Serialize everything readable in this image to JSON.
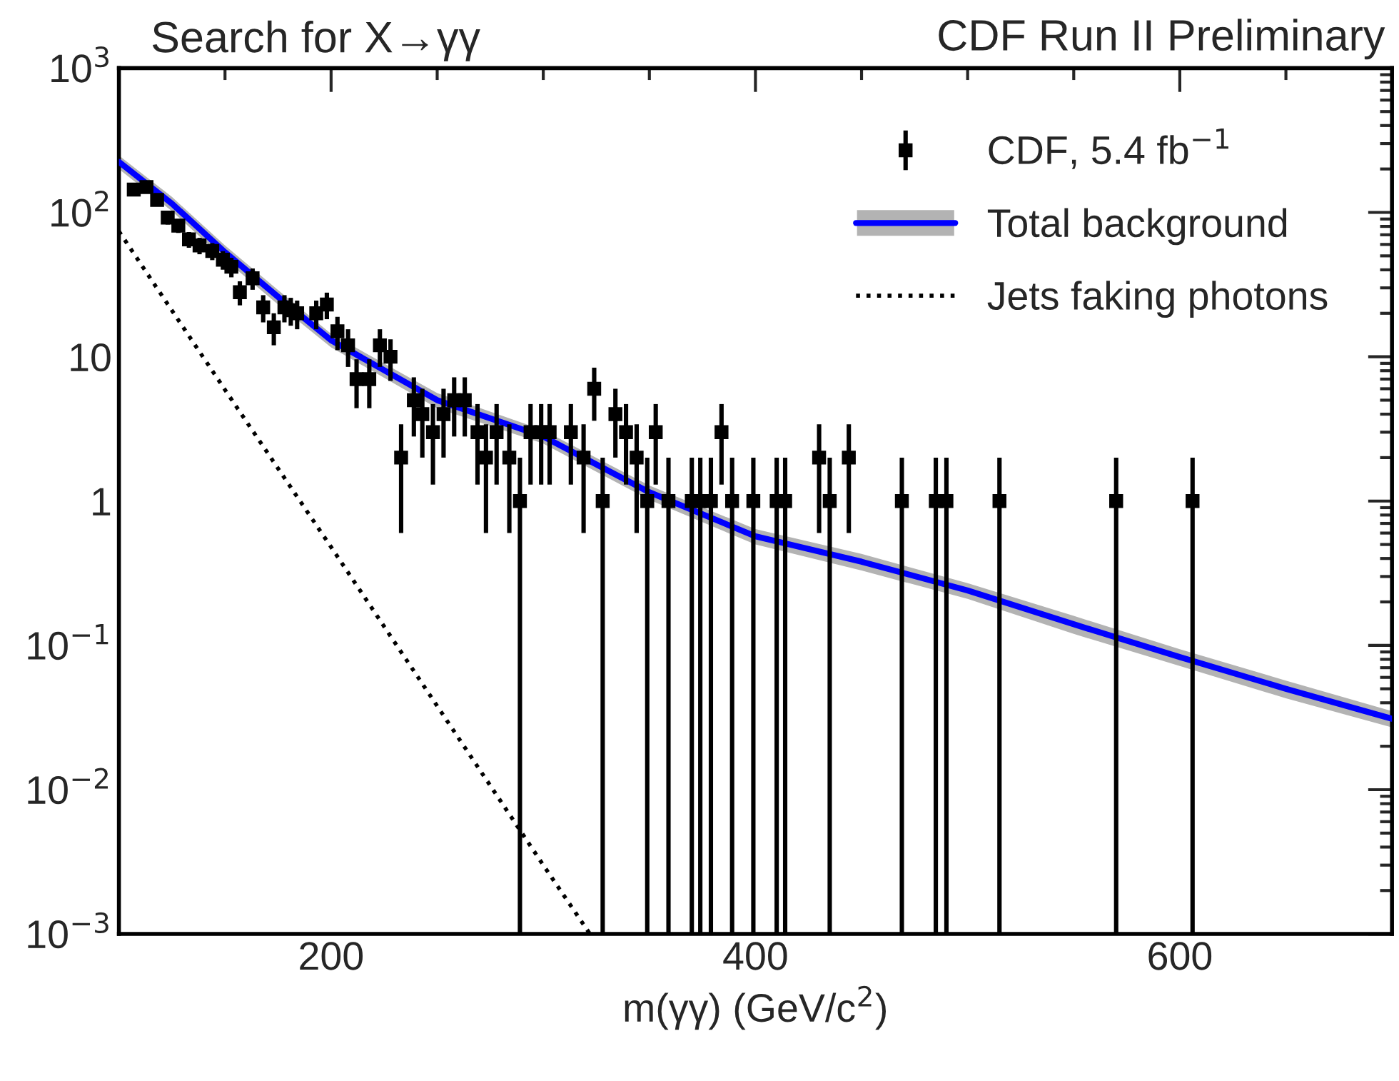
{
  "chart_data": {
    "type": "scatter",
    "title": "Search for X→γγ",
    "xlabel": "m(γγ) (GeV/c$^{2}$)",
    "annotations": [
      "CDF Run II Preliminary"
    ],
    "xlim": [
      100,
      700
    ],
    "xticks": [
      200,
      400,
      600
    ],
    "ylim": [
      0.001,
      1000
    ],
    "yticks": [
      {
        "value": 0.001,
        "label": "10$^{−3}$"
      },
      {
        "value": 0.01,
        "label": "10$^{−2}$"
      },
      {
        "value": 0.1,
        "label": "10$^{−1}$"
      },
      1,
      10,
      {
        "value": 100,
        "label": "10$^{2}$"
      },
      {
        "value": 1000,
        "label": "10$^{3}$"
      }
    ],
    "log": "y",
    "grid": false,
    "legend": "top right",
    "series": [
      {
        "name": "CDF, 5.4 fb$^{−1}$",
        "color": "#000000",
        "marker": "square",
        "x": [
          107,
          113,
          118,
          123,
          128,
          133,
          138,
          144,
          149,
          153,
          157,
          163,
          168,
          173,
          178,
          181,
          184,
          193,
          198,
          203,
          208,
          212,
          218,
          223,
          228,
          233,
          239,
          243,
          248,
          253,
          258,
          263,
          269,
          273,
          278,
          284,
          289,
          294,
          299,
          303,
          313,
          319,
          324,
          328,
          334,
          339,
          344,
          349,
          353,
          359,
          370,
          374,
          379,
          384,
          389,
          399,
          410,
          414,
          430,
          435,
          444,
          469,
          485,
          490,
          515,
          570,
          606
        ],
        "values": [
          144,
          150,
          122,
          92,
          81,
          65,
          59,
          54,
          47,
          42,
          28,
          35,
          22,
          16,
          22,
          21,
          20,
          20,
          23,
          15,
          12,
          7,
          7,
          12,
          10,
          2,
          5,
          4,
          3,
          4,
          5,
          5,
          3,
          2,
          3,
          2,
          1,
          3,
          3,
          3,
          3,
          2,
          6,
          1,
          4,
          3,
          2,
          1,
          3,
          1,
          1,
          1,
          1,
          3,
          1,
          1,
          1,
          1,
          2,
          1,
          2,
          1,
          1,
          1,
          1,
          1,
          1
        ],
        "errors": [
          12,
          12,
          11,
          9.6,
          9,
          8.1,
          7.7,
          7.3,
          6.9,
          6.5,
          5.3,
          5.9,
          4.7,
          4,
          4.7,
          4.6,
          4.5,
          4.5,
          4.8,
          3.9,
          3.5,
          2.6,
          2.6,
          3.5,
          3.2,
          1.4,
          2.2,
          2,
          1.7,
          2,
          2.2,
          2.2,
          1.7,
          1.4,
          1.7,
          1.4,
          [
            0.999,
            1
          ],
          1.7,
          1.7,
          1.7,
          1.7,
          1.4,
          2.4,
          [
            0.999,
            1
          ],
          2,
          1.7,
          1.4,
          [
            0.999,
            1
          ],
          1.7,
          [
            0.999,
            1
          ],
          [
            0.999,
            1
          ],
          [
            0.999,
            1
          ],
          [
            0.999,
            1
          ],
          1.7,
          [
            0.999,
            1
          ],
          [
            0.999,
            1
          ],
          [
            0.999,
            1
          ],
          [
            0.999,
            1
          ],
          1.4,
          [
            0.999,
            1
          ],
          1.4,
          [
            0.999,
            1
          ],
          [
            0.999,
            1
          ],
          [
            0.999,
            1
          ],
          [
            0.999,
            1
          ],
          [
            0.999,
            1
          ],
          [
            0.999,
            1
          ]
        ]
      },
      {
        "name": "Total background",
        "type": "line",
        "color": "#0000ff",
        "line_style": "solid",
        "x": [
          100,
          125,
          150,
          175,
          200,
          250,
          300,
          350,
          400,
          450,
          500,
          550,
          600,
          650,
          700
        ],
        "values": [
          224,
          115,
          53,
          26,
          13,
          5.0,
          2.8,
          1.15,
          0.57,
          0.38,
          0.24,
          0.14,
          0.083,
          0.05,
          0.031
        ],
        "lower": [
          200,
          102,
          47,
          23,
          11.6,
          4.4,
          2.5,
          1.02,
          0.5,
          0.33,
          0.21,
          0.12,
          0.072,
          0.043,
          0.027
        ],
        "upper": [
          248,
          128,
          59,
          29,
          14.4,
          5.6,
          3.1,
          1.28,
          0.64,
          0.43,
          0.27,
          0.16,
          0.094,
          0.057,
          0.035
        ]
      },
      {
        "name": "Jets faking photons",
        "type": "line",
        "color": "#000000",
        "line_style": "dotted",
        "x": [
          100,
          150,
          200,
          250,
          300,
          322
        ],
        "values": [
          74,
          5.9,
          0.48,
          0.038,
          0.003,
          0.001
        ]
      }
    ]
  }
}
